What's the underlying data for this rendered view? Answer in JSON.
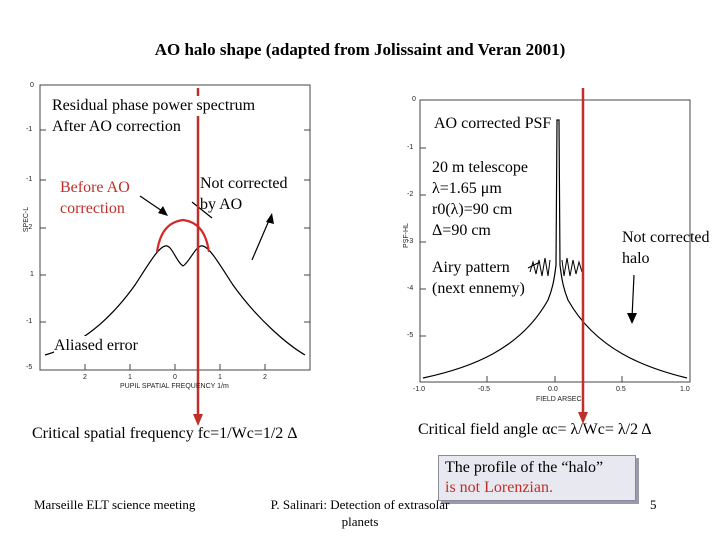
{
  "title": "AO halo shape (adapted from Jolissaint and Veran 2001)",
  "left_plot": {
    "label_line1": "Residual phase power spectrum",
    "label_line2": "After AO correction",
    "before_ao_line1": "Before AO",
    "before_ao_line2": "correction",
    "not_corrected_line1": "Not corrected",
    "not_corrected_line2": "by AO",
    "aliased": "Aliased error",
    "ylabel": "SPEC-L",
    "xlabel": "PUPIL SPATIAL FREQUENCY 1/m",
    "y_ticks": [
      "0",
      "-1",
      "-1",
      "-2",
      "1",
      "-1",
      "-5"
    ],
    "x_ticks": [
      "2",
      "1",
      "0",
      "1",
      "2"
    ],
    "caption": "Critical spatial frequency fc=1/Wc=1/2 Δ"
  },
  "right_plot": {
    "label": "AO corrected PSF",
    "param1": "20 m telescope",
    "param2": "λ=1.65 μm",
    "param3": "r0(λ)=90 cm",
    "param4": "Δ=90 cm",
    "airy_line1": "Airy pattern",
    "airy_line2": "(next ennemy)",
    "not_corrected_line1": "Not corrected",
    "not_corrected_line2": "halo",
    "ylabel": "PSF-HL",
    "xlabel": "FIELD ARSEC",
    "x_ticks": [
      "-1.0",
      "-0.5",
      "0.0",
      "0.5",
      "1.0"
    ],
    "y_ticks": [
      "0",
      "-1",
      "-2",
      "-3",
      "-4",
      "-5"
    ],
    "caption": "Critical field angle αc= λ/Wc= λ/2 Δ"
  },
  "note": {
    "line1": "The profile of the “halo”",
    "line2": "is not Lorenzian."
  },
  "footer": {
    "left": "Marseille ELT science meeting",
    "center_line1": "P. Salinari: Detection of extrasolar",
    "center_line2": "planets",
    "page": "5"
  },
  "colors": {
    "accent": "#c0302a"
  }
}
